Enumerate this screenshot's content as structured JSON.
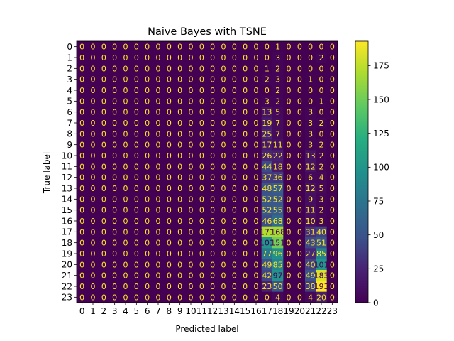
{
  "chart_data": {
    "type": "heatmap",
    "title": "Naive Bayes with TSNE",
    "xlabel": "Predicted label",
    "ylabel": "True label",
    "x_tick_labels": [
      "0",
      "1",
      "2",
      "3",
      "4",
      "5",
      "6",
      "7",
      "8",
      "9",
      "10",
      "11",
      "12",
      "13",
      "14",
      "15",
      "16",
      "17",
      "18",
      "19",
      "20",
      "21",
      "22",
      "23"
    ],
    "y_tick_labels": [
      "0",
      "1",
      "2",
      "3",
      "4",
      "5",
      "6",
      "7",
      "8",
      "9",
      "10",
      "11",
      "12",
      "13",
      "14",
      "15",
      "16",
      "17",
      "18",
      "19",
      "20",
      "21",
      "22",
      "23"
    ],
    "colormap": "viridis",
    "vmin": 0,
    "vmax": 193,
    "colorbar_ticks": [
      "0",
      "25",
      "50",
      "75",
      "100",
      "125",
      "150",
      "175"
    ],
    "matrix": [
      [
        0,
        0,
        0,
        0,
        0,
        0,
        0,
        0,
        0,
        0,
        0,
        0,
        0,
        0,
        0,
        0,
        0,
        0,
        1,
        0,
        0,
        0,
        0,
        0
      ],
      [
        0,
        0,
        0,
        0,
        0,
        0,
        0,
        0,
        0,
        0,
        0,
        0,
        0,
        0,
        0,
        0,
        0,
        0,
        3,
        0,
        0,
        0,
        2,
        0
      ],
      [
        0,
        0,
        0,
        0,
        0,
        0,
        0,
        0,
        0,
        0,
        0,
        0,
        0,
        0,
        0,
        0,
        0,
        1,
        2,
        0,
        0,
        0,
        0,
        0
      ],
      [
        0,
        0,
        0,
        0,
        0,
        0,
        0,
        0,
        0,
        0,
        0,
        0,
        0,
        0,
        0,
        0,
        0,
        2,
        3,
        0,
        0,
        1,
        0,
        0
      ],
      [
        0,
        0,
        0,
        0,
        0,
        0,
        0,
        0,
        0,
        0,
        0,
        0,
        0,
        0,
        0,
        0,
        0,
        0,
        2,
        0,
        0,
        0,
        0,
        0
      ],
      [
        0,
        0,
        0,
        0,
        0,
        0,
        0,
        0,
        0,
        0,
        0,
        0,
        0,
        0,
        0,
        0,
        0,
        3,
        2,
        0,
        0,
        0,
        1,
        0
      ],
      [
        0,
        0,
        0,
        0,
        0,
        0,
        0,
        0,
        0,
        0,
        0,
        0,
        0,
        0,
        0,
        0,
        0,
        13,
        5,
        0,
        0,
        3,
        0,
        0
      ],
      [
        0,
        0,
        0,
        0,
        0,
        0,
        0,
        0,
        0,
        0,
        0,
        0,
        0,
        0,
        0,
        0,
        0,
        19,
        7,
        0,
        0,
        3,
        2,
        0
      ],
      [
        0,
        0,
        0,
        0,
        0,
        0,
        0,
        0,
        0,
        0,
        0,
        0,
        0,
        0,
        0,
        0,
        0,
        25,
        7,
        0,
        0,
        3,
        0,
        0
      ],
      [
        0,
        0,
        0,
        0,
        0,
        0,
        0,
        0,
        0,
        0,
        0,
        0,
        0,
        0,
        0,
        0,
        0,
        17,
        11,
        0,
        0,
        3,
        2,
        0
      ],
      [
        0,
        0,
        0,
        0,
        0,
        0,
        0,
        0,
        0,
        0,
        0,
        0,
        0,
        0,
        0,
        0,
        0,
        26,
        22,
        0,
        0,
        13,
        2,
        0
      ],
      [
        0,
        0,
        0,
        0,
        0,
        0,
        0,
        0,
        0,
        0,
        0,
        0,
        0,
        0,
        0,
        0,
        0,
        44,
        18,
        0,
        0,
        12,
        2,
        0
      ],
      [
        0,
        0,
        0,
        0,
        0,
        0,
        0,
        0,
        0,
        0,
        0,
        0,
        0,
        0,
        0,
        0,
        0,
        37,
        36,
        0,
        0,
        6,
        4,
        0
      ],
      [
        0,
        0,
        0,
        0,
        0,
        0,
        0,
        0,
        0,
        0,
        0,
        0,
        0,
        0,
        0,
        0,
        0,
        48,
        57,
        0,
        0,
        12,
        5,
        0
      ],
      [
        0,
        0,
        0,
        0,
        0,
        0,
        0,
        0,
        0,
        0,
        0,
        0,
        0,
        0,
        0,
        0,
        0,
        52,
        52,
        0,
        0,
        9,
        3,
        0
      ],
      [
        0,
        0,
        0,
        0,
        0,
        0,
        0,
        0,
        0,
        0,
        0,
        0,
        0,
        0,
        0,
        0,
        0,
        52,
        55,
        0,
        0,
        11,
        2,
        0
      ],
      [
        0,
        0,
        0,
        0,
        0,
        0,
        0,
        0,
        0,
        0,
        0,
        0,
        0,
        0,
        0,
        0,
        0,
        46,
        68,
        0,
        0,
        10,
        3,
        0
      ],
      [
        0,
        0,
        0,
        0,
        0,
        0,
        0,
        0,
        0,
        0,
        0,
        0,
        0,
        0,
        0,
        0,
        0,
        171,
        168,
        0,
        0,
        31,
        40,
        0
      ],
      [
        0,
        0,
        0,
        0,
        0,
        0,
        0,
        0,
        0,
        0,
        0,
        0,
        0,
        0,
        0,
        0,
        0,
        101,
        151,
        0,
        0,
        43,
        51,
        0
      ],
      [
        0,
        0,
        0,
        0,
        0,
        0,
        0,
        0,
        0,
        0,
        0,
        0,
        0,
        0,
        0,
        0,
        0,
        77,
        96,
        0,
        0,
        27,
        85,
        0
      ],
      [
        0,
        0,
        0,
        0,
        0,
        0,
        0,
        0,
        0,
        0,
        0,
        0,
        0,
        0,
        0,
        0,
        0,
        49,
        85,
        0,
        0,
        40,
        101,
        0
      ],
      [
        0,
        0,
        0,
        0,
        0,
        0,
        0,
        0,
        0,
        0,
        0,
        0,
        0,
        0,
        0,
        0,
        0,
        42,
        97,
        0,
        0,
        49,
        183,
        0
      ],
      [
        0,
        0,
        0,
        0,
        0,
        0,
        0,
        0,
        0,
        0,
        0,
        0,
        0,
        0,
        0,
        0,
        0,
        23,
        50,
        0,
        0,
        38,
        193,
        0
      ],
      [
        0,
        0,
        0,
        0,
        0,
        0,
        0,
        0,
        0,
        0,
        0,
        0,
        0,
        0,
        0,
        0,
        0,
        0,
        4,
        0,
        0,
        4,
        20,
        0
      ]
    ]
  }
}
